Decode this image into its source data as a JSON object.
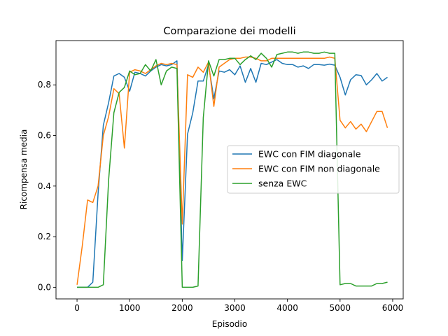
{
  "chart_data": {
    "type": "line",
    "title": "Comparazione dei modelli",
    "xlabel": "Episodio",
    "ylabel": "Ricompensa media",
    "xlim": [
      -400,
      6200
    ],
    "ylim": [
      -0.046,
      0.975
    ],
    "xticks": [
      0,
      1000,
      2000,
      3000,
      4000,
      5000,
      6000
    ],
    "yticks": [
      0.0,
      0.2,
      0.4,
      0.6,
      0.8
    ],
    "xtick_labels": [
      "0",
      "1000",
      "2000",
      "3000",
      "4000",
      "5000",
      "6000"
    ],
    "ytick_labels": [
      "0.0",
      "0.2",
      "0.4",
      "0.6",
      "0.8"
    ],
    "grid": false,
    "legend_position": "center-right",
    "x": [
      0,
      100,
      200,
      300,
      400,
      500,
      600,
      700,
      800,
      900,
      1000,
      1100,
      1200,
      1300,
      1400,
      1500,
      1600,
      1700,
      1800,
      1900,
      2000,
      2100,
      2200,
      2300,
      2400,
      2500,
      2600,
      2700,
      2800,
      2900,
      3000,
      3100,
      3200,
      3300,
      3400,
      3500,
      3600,
      3700,
      3800,
      3900,
      4000,
      4100,
      4200,
      4300,
      4400,
      4500,
      4600,
      4700,
      4800,
      4900,
      5000,
      5100,
      5200,
      5300,
      5400,
      5500,
      5600,
      5700,
      5800,
      5900
    ],
    "series": [
      {
        "name": "EWC con FIM diagonale",
        "color": "#1f77b4",
        "values": [
          0.0,
          0.0,
          0.0,
          0.02,
          0.37,
          0.64,
          0.73,
          0.835,
          0.845,
          0.83,
          0.775,
          0.85,
          0.845,
          0.835,
          0.855,
          0.87,
          0.88,
          0.875,
          0.88,
          0.895,
          0.105,
          0.605,
          0.69,
          0.815,
          0.815,
          0.88,
          0.745,
          0.855,
          0.85,
          0.86,
          0.84,
          0.875,
          0.81,
          0.865,
          0.81,
          0.885,
          0.88,
          0.89,
          0.9,
          0.885,
          0.88,
          0.88,
          0.87,
          0.875,
          0.865,
          0.88,
          0.88,
          0.878,
          0.882,
          0.878,
          0.83,
          0.76,
          0.82,
          0.84,
          0.837,
          0.8,
          0.82,
          0.845,
          0.815,
          0.83
        ]
      },
      {
        "name": "EWC con FIM non diagonale",
        "color": "#ff7f0e",
        "values": [
          0.01,
          0.165,
          0.345,
          0.335,
          0.4,
          0.6,
          0.675,
          0.785,
          0.765,
          0.55,
          0.85,
          0.86,
          0.855,
          0.845,
          0.86,
          0.875,
          0.885,
          0.88,
          0.885,
          0.88,
          0.25,
          0.84,
          0.83,
          0.87,
          0.85,
          0.89,
          0.715,
          0.87,
          0.885,
          0.9,
          0.905,
          0.905,
          0.91,
          0.91,
          0.905,
          0.895,
          0.895,
          0.905,
          0.905,
          0.905,
          0.905,
          0.905,
          0.905,
          0.905,
          0.905,
          0.905,
          0.905,
          0.905,
          0.91,
          0.905,
          0.66,
          0.63,
          0.655,
          0.625,
          0.645,
          0.615,
          0.655,
          0.695,
          0.695,
          0.63
        ]
      },
      {
        "name": "senza EWC",
        "color": "#2ca02c",
        "values": [
          0.0,
          0.0,
          0.0,
          0.0,
          0.0,
          0.01,
          0.425,
          0.69,
          0.77,
          0.79,
          0.855,
          0.84,
          0.845,
          0.88,
          0.855,
          0.9,
          0.8,
          0.855,
          0.87,
          0.865,
          0.0,
          0.0,
          0.0,
          0.005,
          0.67,
          0.895,
          0.835,
          0.9,
          0.9,
          0.905,
          0.905,
          0.88,
          0.9,
          0.915,
          0.9,
          0.925,
          0.905,
          0.87,
          0.92,
          0.925,
          0.93,
          0.93,
          0.925,
          0.93,
          0.93,
          0.925,
          0.925,
          0.93,
          0.925,
          0.925,
          0.01,
          0.015,
          0.015,
          0.005,
          0.005,
          0.005,
          0.005,
          0.015,
          0.015,
          0.02
        ]
      }
    ]
  }
}
